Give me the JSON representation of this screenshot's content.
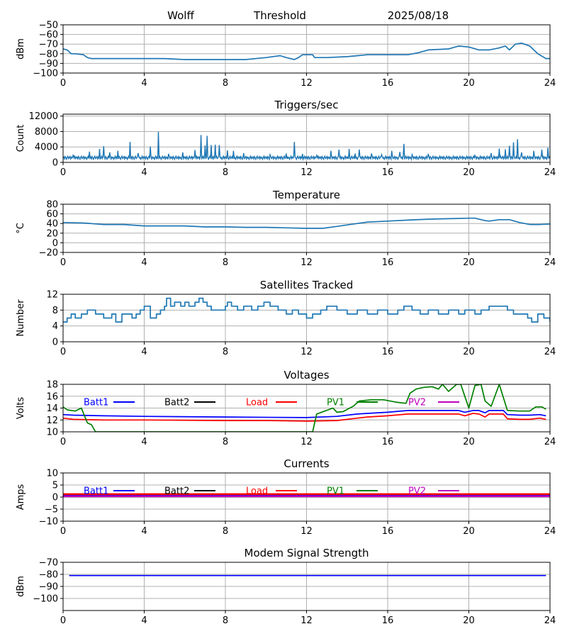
{
  "header": {
    "station": "Wolff",
    "mode": "Threshold",
    "date": "2025/08/18"
  },
  "x_ticks": [
    "0",
    "4",
    "8",
    "12",
    "16",
    "20",
    "24"
  ],
  "chart_data": [
    {
      "id": "threshold",
      "type": "line",
      "title": "",
      "xlabel": "",
      "ylabel": "dBm",
      "xlim": [
        0,
        24
      ],
      "ylim": [
        -100,
        -50
      ],
      "grid": true,
      "yticks": [
        -100,
        -90,
        -80,
        -70,
        -60,
        -50
      ],
      "ytick_labels": [
        "−100",
        "−90",
        "−80",
        "−70",
        "−60",
        "−50"
      ],
      "series": [
        {
          "color": "#1f77b4",
          "x": [
            0,
            0.2,
            0.4,
            0.6,
            1.0,
            1.2,
            1.4,
            2,
            3,
            4,
            5,
            6,
            7,
            8,
            9,
            10,
            10.7,
            11,
            11.4,
            11.6,
            11.8,
            12.3,
            12.4,
            13,
            14,
            15,
            16,
            17,
            17.5,
            18,
            19,
            19.5,
            20,
            20.5,
            21,
            21.5,
            21.8,
            22,
            22.3,
            22.6,
            23,
            23.4,
            23.8,
            24
          ],
          "y": [
            -75,
            -76,
            -80,
            -80,
            -81,
            -84,
            -85,
            -85,
            -85,
            -85,
            -85,
            -86,
            -86,
            -86,
            -86,
            -84,
            -82,
            -84,
            -86,
            -84,
            -81,
            -81,
            -84,
            -84,
            -83,
            -81,
            -81,
            -81,
            -79,
            -76,
            -75,
            -72,
            -73,
            -76,
            -76,
            -74,
            -72,
            -76,
            -70,
            -69,
            -72,
            -80,
            -85,
            -85
          ]
        }
      ]
    },
    {
      "id": "triggers",
      "type": "line",
      "title": "Triggers/sec",
      "xlabel": "",
      "ylabel": "Count",
      "xlim": [
        0,
        24
      ],
      "ylim": [
        0,
        12500
      ],
      "grid": true,
      "yticks": [
        0,
        4000,
        8000,
        12000
      ],
      "ytick_labels": [
        "0",
        "4000",
        "8000",
        "12000"
      ],
      "baseline": [
        1100,
        1400,
        900,
        1500,
        1200,
        800,
        1300,
        1600,
        1000,
        1200,
        1500,
        900,
        1400,
        1100,
        1300,
        800,
        1200,
        1600,
        1000,
        1400
      ],
      "spikes": [
        [
          0.5,
          2000
        ],
        [
          1.3,
          2800
        ],
        [
          1.8,
          3500
        ],
        [
          2.0,
          4200
        ],
        [
          2.3,
          2600
        ],
        [
          2.7,
          3000
        ],
        [
          3.3,
          5300
        ],
        [
          3.7,
          2400
        ],
        [
          4.3,
          4100
        ],
        [
          4.7,
          7900
        ],
        [
          5.2,
          2200
        ],
        [
          5.9,
          2600
        ],
        [
          6.5,
          3200
        ],
        [
          6.8,
          7100
        ],
        [
          7.0,
          4400
        ],
        [
          7.1,
          6900
        ],
        [
          7.3,
          4500
        ],
        [
          7.5,
          4600
        ],
        [
          7.7,
          4500
        ],
        [
          8.1,
          3100
        ],
        [
          8.4,
          3000
        ],
        [
          8.9,
          2400
        ],
        [
          10.2,
          2000
        ],
        [
          11.0,
          2300
        ],
        [
          11.4,
          5300
        ],
        [
          11.8,
          2200
        ],
        [
          12.5,
          1800
        ],
        [
          13.2,
          3000
        ],
        [
          13.6,
          3300
        ],
        [
          14.1,
          3500
        ],
        [
          14.4,
          2300
        ],
        [
          14.6,
          3300
        ],
        [
          15.2,
          2300
        ],
        [
          15.7,
          2000
        ],
        [
          16.2,
          3000
        ],
        [
          16.6,
          2700
        ],
        [
          16.8,
          4800
        ],
        [
          17.2,
          2000
        ],
        [
          18.0,
          2200
        ],
        [
          20.3,
          1800
        ],
        [
          21.1,
          2400
        ],
        [
          21.5,
          3600
        ],
        [
          21.8,
          3400
        ],
        [
          22.0,
          4300
        ],
        [
          22.2,
          5200
        ],
        [
          22.4,
          6000
        ],
        [
          22.6,
          2600
        ],
        [
          23.2,
          3000
        ],
        [
          23.6,
          3300
        ],
        [
          23.9,
          3800
        ]
      ]
    },
    {
      "id": "temperature",
      "type": "line",
      "title": "Temperature",
      "xlabel": "",
      "ylabel": "°C",
      "xlim": [
        0,
        24
      ],
      "ylim": [
        -20,
        80
      ],
      "grid": true,
      "yticks": [
        -20,
        0,
        20,
        40,
        60,
        80
      ],
      "ytick_labels": [
        "−20",
        "0",
        "20",
        "40",
        "60",
        "80"
      ],
      "series": [
        {
          "color": "#1f77b4",
          "x": [
            0,
            1,
            2,
            3,
            4,
            5,
            6,
            7,
            8,
            9,
            10,
            11,
            12,
            12.8,
            13.5,
            14,
            14.5,
            15,
            16,
            17,
            18,
            19,
            20,
            20.3,
            20.8,
            21,
            21.5,
            22,
            22.5,
            23,
            23.5,
            24
          ],
          "y": [
            42,
            41,
            38,
            38,
            35,
            35,
            35,
            33,
            33,
            32,
            32,
            31,
            30,
            30,
            34,
            37,
            40,
            43,
            45,
            47,
            49,
            50,
            51,
            51,
            46,
            45,
            48,
            48,
            42,
            38,
            38,
            39
          ]
        }
      ]
    },
    {
      "id": "satellites",
      "type": "line",
      "title": "Satellites Tracked",
      "xlabel": "",
      "ylabel": "Number",
      "xlim": [
        0,
        24
      ],
      "ylim": [
        0,
        12
      ],
      "grid": true,
      "yticks": [
        0,
        4,
        8,
        12
      ],
      "ytick_labels": [
        "0",
        "4",
        "8",
        "12"
      ],
      "series": [
        {
          "color": "#1f77b4",
          "step": true,
          "x": [
            0,
            0.2,
            0.4,
            0.6,
            0.9,
            1.2,
            1.4,
            1.6,
            2.0,
            2.4,
            2.6,
            2.9,
            3.4,
            3.6,
            3.8,
            4.0,
            4.3,
            4.6,
            4.8,
            5.0,
            5.1,
            5.3,
            5.5,
            5.8,
            6.0,
            6.2,
            6.5,
            6.7,
            6.9,
            7.1,
            7.3,
            8.0,
            8.1,
            8.3,
            8.6,
            8.9,
            9.3,
            9.6,
            9.9,
            10.2,
            10.6,
            11.0,
            11.3,
            11.6,
            12.0,
            12.3,
            12.7,
            13.0,
            13.5,
            14.0,
            14.5,
            15.0,
            15.5,
            16.0,
            16.5,
            16.8,
            17.2,
            17.6,
            18.0,
            18.5,
            19.0,
            19.5,
            19.8,
            20.3,
            20.6,
            21.0,
            21.5,
            21.9,
            22.2,
            22.6,
            22.9,
            23.1,
            23.4,
            23.7,
            24
          ],
          "y": [
            5,
            6,
            7,
            6,
            7,
            8,
            8,
            7,
            6,
            7,
            5,
            7,
            6,
            7,
            8,
            9,
            6,
            7,
            8,
            9,
            11,
            9,
            10,
            9,
            10,
            9,
            10,
            11,
            10,
            9,
            8,
            9,
            10,
            9,
            8,
            9,
            8,
            9,
            10,
            9,
            8,
            7,
            8,
            7,
            6,
            7,
            8,
            9,
            8,
            7,
            8,
            7,
            8,
            7,
            8,
            9,
            8,
            7,
            8,
            7,
            8,
            7,
            8,
            7,
            8,
            9,
            9,
            8,
            7,
            7,
            6,
            5,
            7,
            6,
            5
          ]
        }
      ]
    },
    {
      "id": "voltages",
      "type": "line",
      "title": "Voltages",
      "xlabel": "",
      "ylabel": "Volts",
      "xlim": [
        0,
        24
      ],
      "ylim": [
        10,
        18
      ],
      "grid": true,
      "yticks": [
        10,
        12,
        14,
        16,
        18
      ],
      "ytick_labels": [
        "10",
        "12",
        "14",
        "16",
        "18"
      ],
      "legend": "top, in one row",
      "series": [
        {
          "name": "Batt1",
          "color": "#0000ff",
          "x": [
            0,
            0.5,
            2,
            4,
            8,
            12,
            13.5,
            14.5,
            15,
            16,
            17,
            19.5,
            19.8,
            20.2,
            20.5,
            20.8,
            21,
            21.7,
            21.9,
            22.5,
            23,
            23.5,
            23.8
          ],
          "y": [
            12.9,
            12.8,
            12.7,
            12.6,
            12.5,
            12.4,
            12.6,
            13.0,
            13.1,
            13.3,
            13.6,
            13.6,
            13.3,
            13.6,
            13.6,
            13.2,
            13.6,
            13.6,
            12.9,
            12.8,
            12.8,
            12.9,
            12.7
          ]
        },
        {
          "name": "Batt2",
          "color": "#000000",
          "x": [],
          "y": []
        },
        {
          "name": "Load",
          "color": "#ff0000",
          "x": [
            0,
            0.5,
            2,
            4,
            8,
            10,
            12,
            13.5,
            14.5,
            15,
            16,
            17,
            19.5,
            19.8,
            20.2,
            20.5,
            20.8,
            21,
            21.7,
            21.9,
            22.5,
            23,
            23.5,
            23.8
          ],
          "y": [
            12.3,
            12.1,
            12.0,
            12.0,
            11.9,
            11.9,
            11.8,
            11.9,
            12.3,
            12.5,
            12.7,
            13.0,
            13.0,
            12.7,
            13.1,
            13.0,
            12.5,
            13.0,
            13.0,
            12.2,
            12.1,
            12.1,
            12.3,
            12.1
          ]
        },
        {
          "name": "PV1",
          "color": "#008000",
          "x": [
            0,
            0.2,
            0.6,
            0.9,
            1.2,
            1.4,
            1.6,
            12.3,
            12.5,
            12.9,
            13.3,
            13.5,
            13.8,
            14.3,
            14.6,
            15.2,
            15.8,
            16.4,
            16.9,
            17.1,
            17.4,
            17.8,
            18.2,
            18.5,
            18.7,
            19.0,
            19.4,
            19.6,
            19.8,
            20.0,
            20.3,
            20.6,
            20.8,
            21.1,
            21.5,
            21.9,
            22.5,
            23.0,
            23.3,
            23.6,
            23.8
          ],
          "y": [
            14.2,
            13.7,
            13.5,
            14.0,
            11.5,
            11.2,
            10.0,
            10.0,
            13.0,
            13.5,
            14.0,
            13.3,
            13.4,
            14.3,
            15.2,
            15.4,
            15.4,
            15.0,
            14.8,
            16.5,
            17.2,
            17.5,
            17.6,
            17.2,
            18.0,
            16.8,
            18.0,
            18.0,
            16.0,
            14.0,
            17.8,
            18.0,
            15.2,
            14.3,
            18.0,
            13.6,
            13.5,
            13.5,
            14.2,
            14.2,
            13.8
          ]
        },
        {
          "name": "PV2",
          "color": "#bf00bf",
          "x": [],
          "y": []
        }
      ]
    },
    {
      "id": "currents",
      "type": "line",
      "title": "Currents",
      "xlabel": "",
      "ylabel": "Amps",
      "xlim": [
        0,
        24
      ],
      "ylim": [
        -10,
        10
      ],
      "grid": true,
      "yticks": [
        -10,
        -5,
        0,
        5,
        10
      ],
      "ytick_labels": [
        "−10",
        "−5",
        "0",
        "5",
        "10"
      ],
      "legend": "top, in one row",
      "series": [
        {
          "name": "Batt1",
          "color": "#0000ff",
          "x": [
            0,
            24
          ],
          "y": [
            0.6,
            0.6
          ]
        },
        {
          "name": "Batt2",
          "color": "#000000",
          "x": [],
          "y": []
        },
        {
          "name": "Load",
          "color": "#ff0000",
          "x": [
            0,
            24
          ],
          "y": [
            1.2,
            1.2
          ]
        },
        {
          "name": "PV1",
          "color": "#008000",
          "x": [
            0,
            24
          ],
          "y": [
            0.2,
            0.2
          ]
        },
        {
          "name": "PV2",
          "color": "#bf00bf",
          "x": [
            0,
            24
          ],
          "y": [
            0.3,
            0.3
          ]
        }
      ]
    },
    {
      "id": "modem",
      "type": "line",
      "title": "Modem Signal Strength",
      "xlabel": "",
      "ylabel": "dBm",
      "xlim": [
        0,
        24
      ],
      "ylim": [
        -110,
        -70
      ],
      "grid": true,
      "yticks": [
        -100,
        -90,
        -80,
        -70
      ],
      "ytick_labels": [
        "−100",
        "−90",
        "−80",
        "−70"
      ],
      "series": [
        {
          "color": "#0000ff",
          "x": [
            0.3,
            23.8
          ],
          "y": [
            -81,
            -81
          ]
        }
      ]
    }
  ]
}
